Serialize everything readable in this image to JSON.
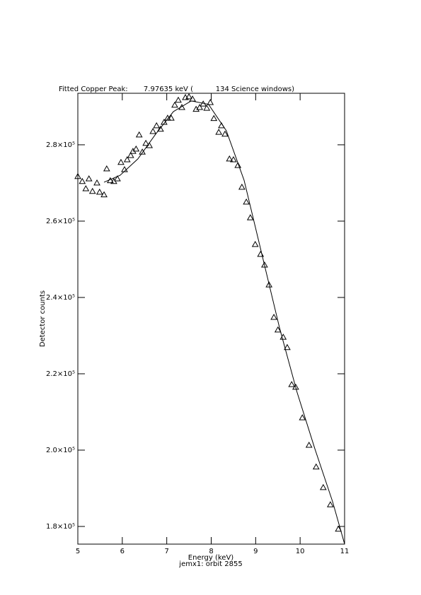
{
  "chart_data": {
    "type": "scatter",
    "title": "Fitted Copper Peak:       7.97635 keV (          134 Science windows)",
    "xlabel": "Energy (keV)",
    "subtitle": "jemx1: orbit 2855",
    "ylabel": "Detector counts",
    "xlim": [
      5,
      11
    ],
    "ylim": [
      175370,
      293500
    ],
    "xticks": [
      5,
      6,
      7,
      8,
      9,
      10,
      11
    ],
    "yticks": [
      {
        "value": 180000,
        "label": "1.8×10⁵"
      },
      {
        "value": 200000,
        "label": "2.0×10⁵"
      },
      {
        "value": 220000,
        "label": "2.2×10⁵"
      },
      {
        "value": 240000,
        "label": "2.4×10⁵"
      },
      {
        "value": 260000,
        "label": "2.6×10⁵"
      },
      {
        "value": 280000,
        "label": "2.8×10⁵"
      }
    ],
    "series": [
      {
        "marker": "triangle",
        "color": "#000000",
        "x": [
          5.0,
          5.1,
          5.18,
          5.25,
          5.33,
          5.43,
          5.49,
          5.59,
          5.65,
          5.73,
          5.81,
          5.89,
          5.97,
          6.05,
          6.11,
          6.19,
          6.24,
          6.31,
          6.38,
          6.45,
          6.53,
          6.61,
          6.69,
          6.77,
          6.86,
          6.94,
          7.02,
          7.1,
          7.18,
          7.26,
          7.34,
          7.42,
          7.5,
          7.58,
          7.66,
          7.74,
          7.82,
          7.9,
          7.98,
          8.06,
          8.17,
          8.23,
          8.31,
          8.41,
          8.5,
          8.6,
          8.69,
          8.79,
          8.88,
          8.99,
          9.11,
          9.2,
          9.3,
          9.41,
          9.5,
          9.62,
          9.71,
          9.81,
          9.9,
          10.05,
          10.2,
          10.36,
          10.52,
          10.68,
          10.86
        ],
        "values": [
          271700,
          270400,
          268500,
          271100,
          267800,
          270000,
          267600,
          266900,
          273700,
          270600,
          270400,
          271100,
          275400,
          273500,
          276100,
          277200,
          278300,
          278900,
          282600,
          278100,
          280400,
          279800,
          283500,
          285000,
          284100,
          285900,
          287000,
          287000,
          290400,
          291700,
          289800,
          292400,
          292600,
          292000,
          289300,
          289800,
          290700,
          289600,
          291100,
          286900,
          283300,
          285000,
          282800,
          276300,
          276100,
          274600,
          268900,
          265000,
          260900,
          253900,
          251300,
          248500,
          243300,
          234800,
          231500,
          229600,
          226900,
          217200,
          216500,
          208500,
          201300,
          195600,
          190200,
          185700,
          179300
        ]
      },
      {
        "marker": "line",
        "color": "#000000",
        "x": [
          5.59,
          5.95,
          6.35,
          6.75,
          7.15,
          7.55,
          7.94,
          8.34,
          8.74,
          9.14,
          9.54,
          9.93,
          10.33,
          10.73,
          11.0
        ],
        "values": [
          270200,
          272000,
          276300,
          282800,
          288700,
          291500,
          290600,
          283700,
          270700,
          251300,
          231900,
          215200,
          200400,
          186500,
          175400
        ]
      }
    ]
  }
}
